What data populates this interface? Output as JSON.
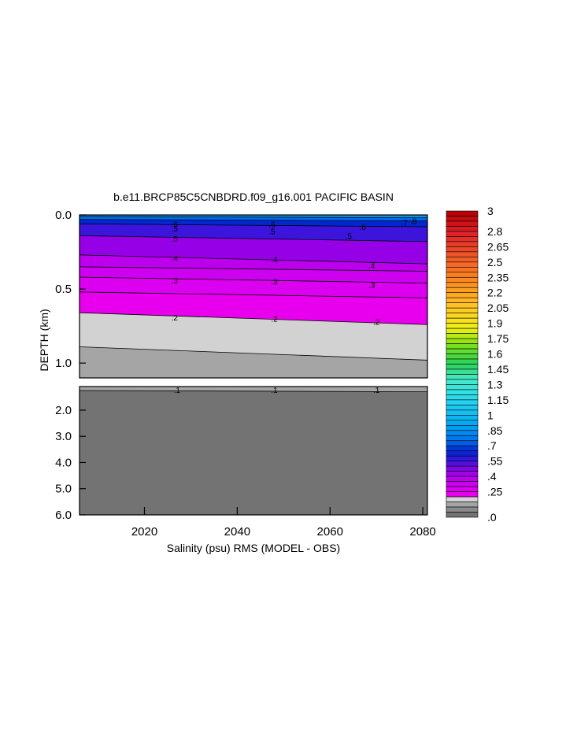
{
  "chart_data": {
    "type": "contour",
    "title": "b.e11.BRCP85C5CNBDRD.f09_g16.001 PACIFIC BASIN",
    "xlabel": "Salinity (psu) RMS (MODEL - OBS)",
    "ylabel": "DEPTH (km)",
    "xlim": [
      2006,
      2081
    ],
    "x_ticks": [
      "2020",
      "2040",
      "2060",
      "2080"
    ],
    "upper_panel": {
      "ylim": [
        0.0,
        1.1
      ],
      "y_ticks": [
        "0.0",
        "0.5",
        "1.0"
      ]
    },
    "lower_panel": {
      "ylim": [
        1.1,
        6.0
      ],
      "y_ticks": [
        "2.0",
        "3.0",
        "4.0",
        "5.0",
        "6.0"
      ]
    },
    "contours": [
      {
        "level": 0.1,
        "label": ".1",
        "depth_km": [
          [
            2006,
            1.25
          ],
          [
            2081,
            1.3
          ]
        ]
      },
      {
        "level": 0.15,
        "label": "",
        "depth_km": [
          [
            2006,
            0.89
          ],
          [
            2081,
            0.98
          ]
        ]
      },
      {
        "level": 0.2,
        "label": ".2",
        "depth_km": [
          [
            2006,
            0.66
          ],
          [
            2081,
            0.74
          ]
        ]
      },
      {
        "level": 0.25,
        "label": "",
        "depth_km": [
          [
            2006,
            0.52
          ],
          [
            2081,
            0.56
          ]
        ]
      },
      {
        "level": 0.3,
        "label": ".3",
        "depth_km": [
          [
            2006,
            0.42
          ],
          [
            2081,
            0.46
          ]
        ]
      },
      {
        "level": 0.35,
        "label": "",
        "depth_km": [
          [
            2006,
            0.35
          ],
          [
            2081,
            0.38
          ]
        ]
      },
      {
        "level": 0.4,
        "label": ".4",
        "depth_km": [
          [
            2006,
            0.27
          ],
          [
            2081,
            0.33
          ]
        ]
      },
      {
        "level": 0.5,
        "label": ".5",
        "depth_km": [
          [
            2006,
            0.14
          ],
          [
            2081,
            0.18
          ]
        ]
      },
      {
        "level": 0.6,
        "label": ".6",
        "depth_km": [
          [
            2006,
            0.06
          ],
          [
            2081,
            0.08
          ]
        ]
      },
      {
        "level": 0.7,
        "label": ".7",
        "depth_km": [
          [
            2006,
            0.03
          ],
          [
            2081,
            0.04
          ]
        ]
      },
      {
        "level": 0.8,
        "label": ".8",
        "depth_km": [
          [
            2006,
            0.01
          ],
          [
            2081,
            0.02
          ]
        ]
      }
    ],
    "contour_labels": [
      {
        "text": ".1",
        "x": 2027,
        "depth": 1.22
      },
      {
        "text": ".1",
        "x": 2048,
        "depth": 1.22
      },
      {
        "text": ".1",
        "x": 2070,
        "depth": 1.22
      },
      {
        "text": ".2",
        "x": 2026.5,
        "depth": 0.69
      },
      {
        "text": ".2",
        "x": 2048,
        "depth": 0.7
      },
      {
        "text": ".2",
        "x": 2070,
        "depth": 0.72
      },
      {
        "text": ".3",
        "x": 2026.5,
        "depth": 0.44
      },
      {
        "text": ".3",
        "x": 2048,
        "depth": 0.45
      },
      {
        "text": ".3",
        "x": 2069,
        "depth": 0.47
      },
      {
        "text": ".4",
        "x": 2026.5,
        "depth": 0.29
      },
      {
        "text": ".4",
        "x": 2048,
        "depth": 0.3
      },
      {
        "text": ".4",
        "x": 2069,
        "depth": 0.34
      },
      {
        "text": ".5",
        "x": 2026.5,
        "depth": 0.16
      },
      {
        "text": ".5",
        "x": 2047.5,
        "depth": 0.11
      },
      {
        "text": ".5",
        "x": 2064,
        "depth": 0.14
      },
      {
        "text": ".5",
        "x": 2026.5,
        "depth": 0.09
      },
      {
        "text": ".6",
        "x": 2026.5,
        "depth": 0.06
      },
      {
        "text": ".6",
        "x": 2047.5,
        "depth": 0.06
      },
      {
        "text": ".6",
        "x": 2067,
        "depth": 0.08
      },
      {
        "text": ".7",
        "x": 2076,
        "depth": 0.05
      },
      {
        "text": ".8",
        "x": 2078,
        "depth": 0.04
      }
    ],
    "colorbar": {
      "range": [
        0.0,
        3.0
      ],
      "step": 0.05,
      "labels": [
        "3",
        "2.8",
        "2.65",
        "2.5",
        "2.35",
        "2.2",
        "2.05",
        "1.9",
        "1.75",
        "1.6",
        "1.45",
        "1.3",
        "1.15",
        "1",
        ".85",
        ".7",
        ".55",
        ".4",
        ".25",
        ".0"
      ]
    }
  }
}
